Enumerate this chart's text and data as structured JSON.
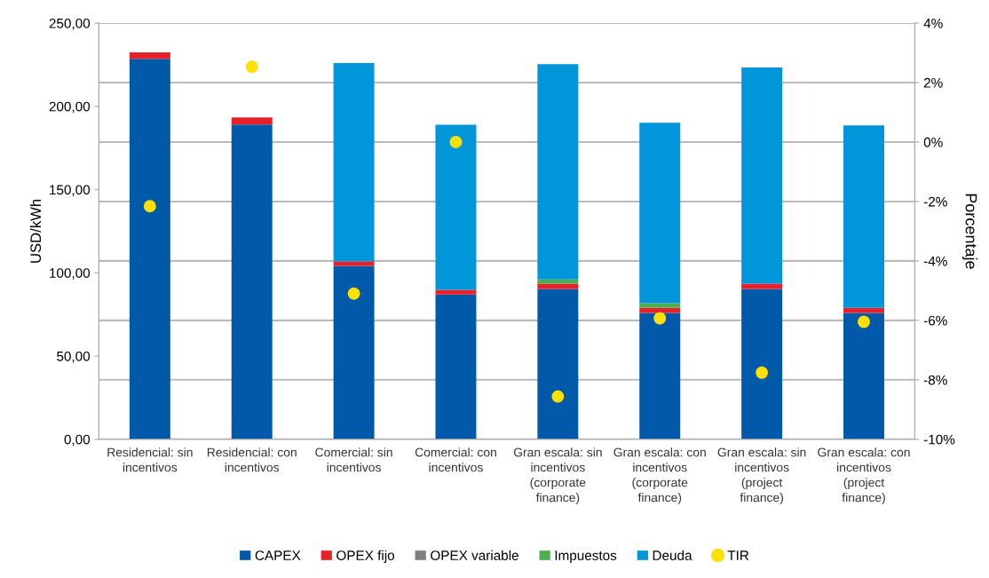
{
  "chart_data": {
    "type": "bar",
    "stacked": true,
    "ylabel": "USD/kWh",
    "y2label": "Porcentaje",
    "categories": [
      "Residencial: sin incentivos",
      "Residencial: con incentivos",
      "Comercial: sin incentivos",
      "Comercial: con incentivos",
      "Gran escala: sin incentivos (corporate finance)",
      "Gran escala: con incentivos (corporate finance)",
      "Gran escala: sin incentivos (project finance)",
      "Gran escala: con incentivos (project finance)"
    ],
    "series": [
      {
        "name": "CAPEX",
        "color": "#005aa9",
        "values": [
          228.6,
          189.1,
          104.2,
          87.0,
          90.3,
          75.9,
          90.3,
          75.9
        ]
      },
      {
        "name": "OPEX fijo",
        "color": "#e8202a",
        "values": [
          3.8,
          4.3,
          2.6,
          2.7,
          3.2,
          3.1,
          3.2,
          3.1
        ]
      },
      {
        "name": "OPEX variable",
        "color": "#7f7f7f",
        "values": [
          0,
          0,
          0,
          0,
          0,
          0,
          0,
          0
        ]
      },
      {
        "name": "Impuestos",
        "color": "#4caf50",
        "values": [
          0,
          0,
          0,
          0,
          2.5,
          2.7,
          0,
          0
        ]
      },
      {
        "name": "Deuda",
        "color": "#0096d9",
        "values": [
          0,
          0,
          119.2,
          99.3,
          129.4,
          108.5,
          129.8,
          109.6
        ]
      },
      {
        "name": "TIR",
        "type": "scatter",
        "axis": "y2",
        "marker": "circle",
        "color": "#ffe000",
        "values": [
          -2.16,
          2.53,
          -5.1,
          0.0,
          -8.56,
          -5.93,
          -7.76,
          -6.05
        ]
      }
    ],
    "ylim": [
      0,
      250
    ],
    "yticks": [
      {
        "value": 0,
        "label": "0,00"
      },
      {
        "value": 50,
        "label": "50,00"
      },
      {
        "value": 100,
        "label": "100,00"
      },
      {
        "value": 150,
        "label": "150,00"
      },
      {
        "value": 200,
        "label": "200,00"
      },
      {
        "value": 250,
        "label": "250,00"
      }
    ],
    "y2lim": [
      -10,
      4
    ],
    "y2ticks": [
      {
        "value": -10,
        "label": "-10%"
      },
      {
        "value": -8,
        "label": "-8%"
      },
      {
        "value": -6,
        "label": "-6%"
      },
      {
        "value": -4,
        "label": "-4%"
      },
      {
        "value": -2,
        "label": "-2%"
      },
      {
        "value": 0,
        "label": "0%"
      },
      {
        "value": 2,
        "label": "2%"
      },
      {
        "value": 4,
        "label": "4%"
      }
    ],
    "grid": "y2",
    "legend": "bottom"
  }
}
